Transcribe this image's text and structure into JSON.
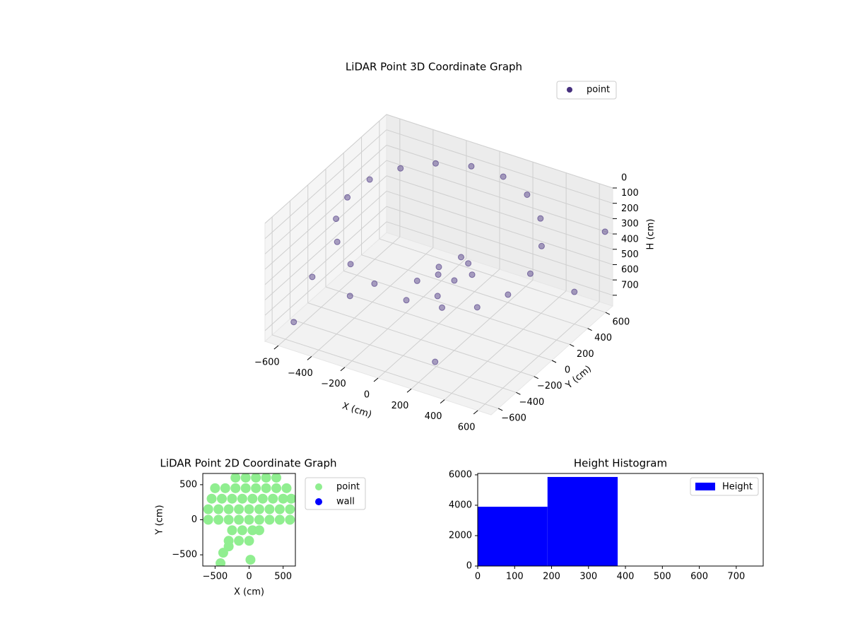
{
  "chart_data": [
    {
      "type": "scatter3d",
      "title": "LiDAR Point 3D Coordinate Graph",
      "xlabel": "X (cm)",
      "ylabel": "Y (cm)",
      "zlabel": "H (cm)",
      "xlim": [
        -680,
        680
      ],
      "ylim": [
        -680,
        680
      ],
      "zlim": [
        0,
        770
      ],
      "z_inverted": true,
      "grid": true,
      "legend": "upper right",
      "xticks": [
        {
          "value": -600,
          "label": "−600"
        },
        {
          "value": -400,
          "label": "−400"
        },
        {
          "value": -200,
          "label": "−200"
        },
        0,
        200,
        400,
        600
      ],
      "yticks": [
        {
          "value": -600,
          "label": "−600"
        },
        {
          "value": -400,
          "label": "−400"
        },
        {
          "value": -200,
          "label": "−200"
        },
        0,
        200,
        400,
        600
      ],
      "zticks": [
        0,
        100,
        200,
        300,
        400,
        500,
        600,
        700
      ],
      "series": [
        {
          "name": "point",
          "color": "#46307e",
          "x": [
            550,
            517,
            421,
            275,
            96,
            -96,
            -275,
            -421,
            -517,
            -550,
            -517,
            -421,
            -275,
            -96,
            96,
            275,
            421,
            517,
            50,
            120,
            0,
            150,
            -50,
            100,
            200,
            80,
            -600,
            -550,
            -400,
            600,
            650,
            300
          ],
          "y": [
            0,
            188,
            354,
            476,
            542,
            542,
            476,
            354,
            188,
            0,
            -188,
            -354,
            -476,
            -542,
            -542,
            -476,
            -354,
            -188,
            -100,
            -50,
            0,
            50,
            -150,
            -200,
            0,
            100,
            -300,
            -600,
            -250,
            400,
            650,
            -600
          ],
          "z": [
            250,
            180,
            120,
            80,
            60,
            60,
            70,
            90,
            110,
            140,
            170,
            200,
            230,
            260,
            300,
            320,
            330,
            300,
            380,
            420,
            400,
            350,
            430,
            450,
            380,
            360,
            520,
            640,
            600,
            560,
            280,
            600
          ]
        }
      ]
    },
    {
      "type": "scatter",
      "title": "LiDAR Point 2D Coordinate Graph",
      "xlabel": "X (cm)",
      "ylabel": "Y (cm)",
      "xlim": [
        -680,
        680
      ],
      "ylim": [
        -660,
        660
      ],
      "legend": "outside upper right",
      "xticks": [
        {
          "value": -500,
          "label": "−500"
        },
        0,
        500
      ],
      "yticks": [
        {
          "value": -500,
          "label": "−500"
        },
        0,
        500
      ],
      "series": [
        {
          "name": "point",
          "color": "#90ee90",
          "x": [
            -200,
            -50,
            100,
            250,
            400,
            -500,
            -350,
            -200,
            -50,
            100,
            250,
            400,
            550,
            -550,
            -400,
            -250,
            -100,
            50,
            200,
            350,
            500,
            620,
            -600,
            -450,
            -300,
            -150,
            0,
            150,
            300,
            450,
            600,
            -600,
            -450,
            -300,
            -150,
            0,
            150,
            300,
            450,
            600,
            -250,
            -100,
            50,
            150,
            -300,
            -150,
            0,
            -300,
            -380,
            -420,
            20
          ],
          "y": [
            600,
            600,
            600,
            600,
            600,
            450,
            450,
            450,
            450,
            450,
            450,
            450,
            450,
            300,
            300,
            300,
            300,
            300,
            300,
            300,
            300,
            300,
            150,
            150,
            150,
            150,
            150,
            150,
            150,
            150,
            150,
            0,
            0,
            0,
            0,
            0,
            0,
            0,
            0,
            0,
            -150,
            -150,
            -150,
            -150,
            -300,
            -300,
            -300,
            -380,
            -470,
            -620,
            -570
          ]
        },
        {
          "name": "wall",
          "color": "#0000ff",
          "x": [],
          "y": []
        }
      ]
    },
    {
      "type": "histogram",
      "title": "Height Histogram",
      "legend": "upper right",
      "bins": [
        0,
        189,
        379,
        568,
        758
      ],
      "series": [
        {
          "name": "Height",
          "color": "#0000ff",
          "values": [
            3900,
            5860,
            0,
            0
          ]
        }
      ],
      "xlim": [
        0,
        773
      ],
      "ylim": [
        0,
        6090
      ],
      "xticks": [
        0,
        100,
        200,
        300,
        400,
        500,
        600,
        700
      ],
      "yticks": [
        0,
        2000,
        4000,
        6000
      ]
    }
  ]
}
